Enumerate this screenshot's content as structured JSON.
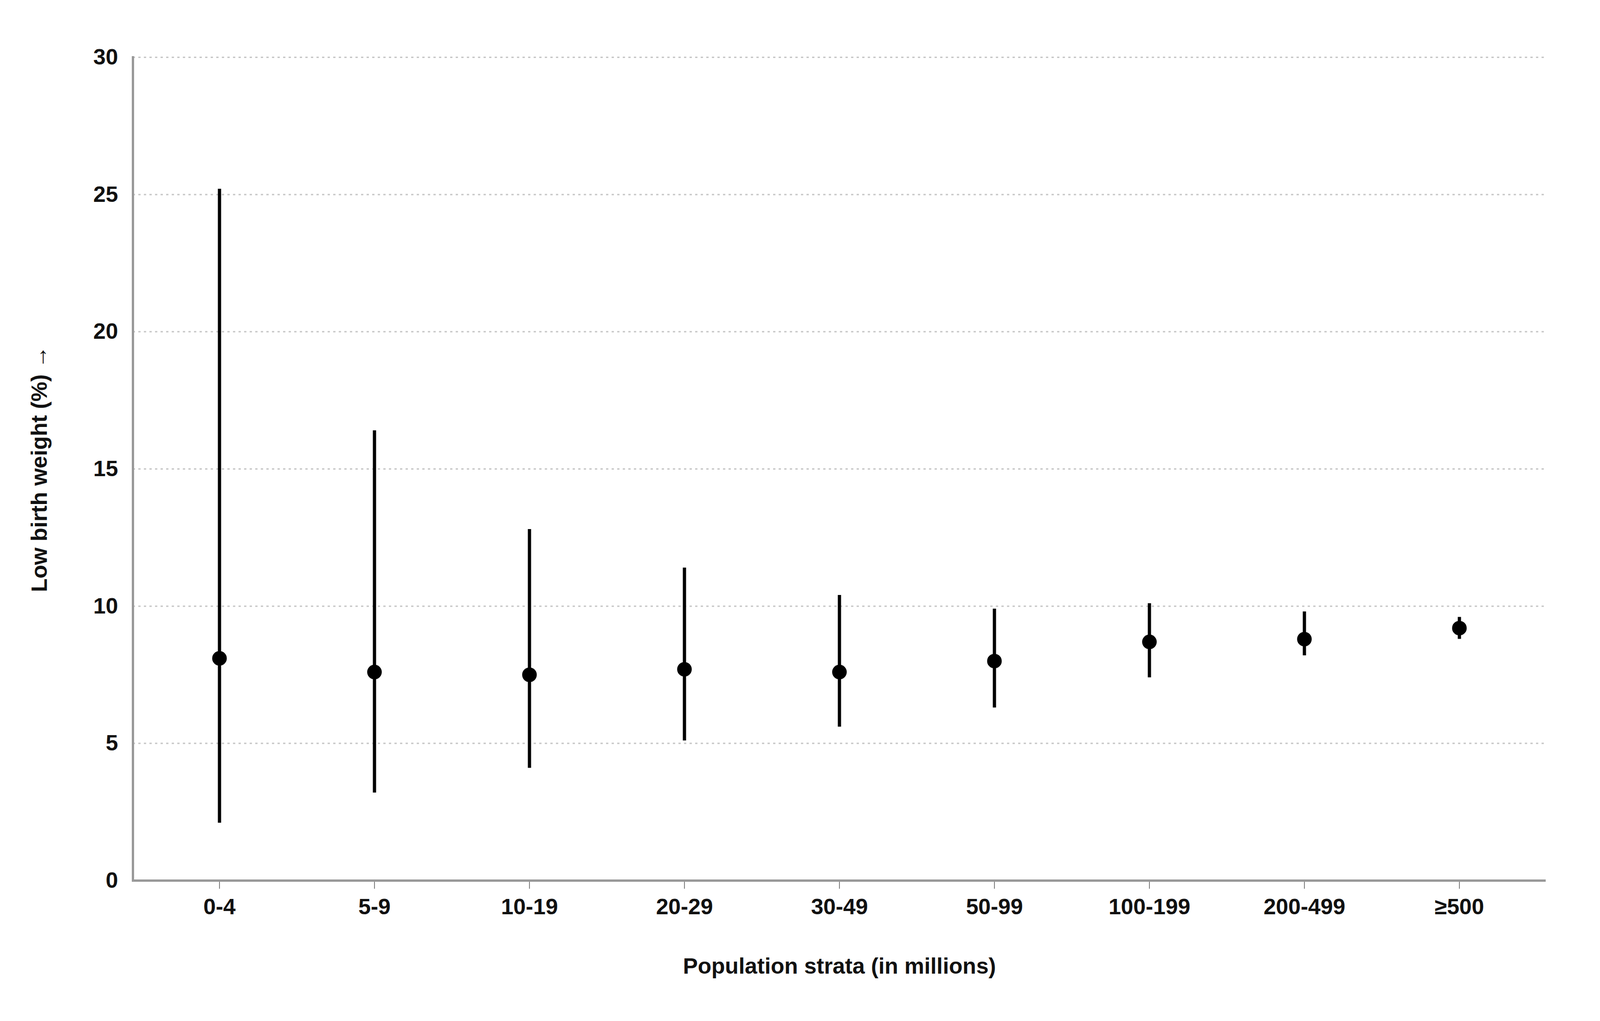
{
  "chart_data": {
    "type": "scatter",
    "x_label": "Population strata (in millions)",
    "y_label": "Low birth weight (%)",
    "categories": [
      "0-4",
      "5-9",
      "10-19",
      "20-29",
      "30-49",
      "50-99",
      "100-199",
      "200-499",
      "≥500"
    ],
    "values": [
      8.1,
      7.6,
      7.5,
      7.7,
      7.6,
      8.0,
      8.7,
      8.8,
      9.2
    ],
    "lower": [
      2.1,
      3.2,
      4.1,
      5.1,
      5.6,
      6.3,
      7.4,
      8.2,
      8.8
    ],
    "upper": [
      25.2,
      16.4,
      12.8,
      11.4,
      10.4,
      9.9,
      10.1,
      9.8,
      9.6
    ],
    "color": "#000000",
    "ylim": [
      0,
      30
    ],
    "yticks": [
      0,
      5,
      10,
      15,
      20,
      25,
      30
    ],
    "grid": true,
    "marker": "circle"
  }
}
